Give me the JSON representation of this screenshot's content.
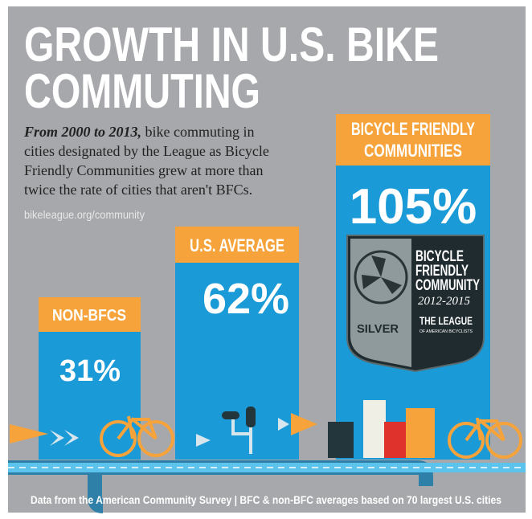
{
  "title_lines": [
    "GROWTH IN U.S. BIKE",
    "COMMUTING"
  ],
  "intro": {
    "lead": "From 2000 to 2013,",
    "first_line": "bike commuting in",
    "lines": [
      "cities designated by the League as Bicycle",
      "Friendly Communities grew at more than",
      "twice the rate of cities that aren't BFCs."
    ]
  },
  "link": "bikeleague.org/community",
  "columns": [
    {
      "label_lines": [
        "NON-BFCS"
      ],
      "value": "31%"
    },
    {
      "label_lines": [
        "U.S. AVERAGE"
      ],
      "value": "62%"
    },
    {
      "label_lines": [
        "BICYCLE FRIENDLY",
        "COMMUNITIES"
      ],
      "value": "105%"
    }
  ],
  "badge": {
    "lines": [
      "BICYCLE",
      "FRIENDLY",
      "COMMUNITY"
    ],
    "years": "2012-2015",
    "level": "SILVER",
    "org": "THE LEAGUE",
    "org_sub": "OF AMERICAN BICYCLISTS"
  },
  "footer": "Data from the American Community Survey | BFC & non-BFC averages based on 70 largest U.S. cities"
}
